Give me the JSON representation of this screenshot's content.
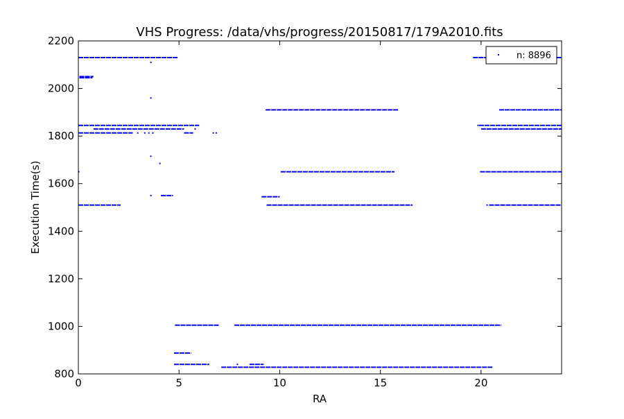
{
  "chart_data": {
    "type": "scatter",
    "title": "VHS Progress: /data/vhs/progress/20150817/179A2010.fits",
    "xlabel": "RA",
    "ylabel": "Execution Time(s)",
    "xlim": [
      0,
      24
    ],
    "ylim": [
      800,
      2200
    ],
    "x_ticks": [
      0,
      5,
      10,
      15,
      20
    ],
    "y_ticks": [
      800,
      1000,
      1200,
      1400,
      1600,
      1800,
      2000,
      2200
    ],
    "legend": {
      "label": "n: 8896",
      "placement": "top-right"
    },
    "grid": false,
    "marker_color": "#0000ff",
    "series": [
      {
        "name": "n: 8896",
        "segments": [
          {
            "y": 2130,
            "x": [
              0.0,
              4.95
            ]
          },
          {
            "y": 2130,
            "x": [
              19.6,
              24.0
            ]
          },
          {
            "y": 2050,
            "x": [
              0.05,
              0.75
            ]
          },
          {
            "y": 2045,
            "x": [
              0.05,
              0.7
            ]
          },
          {
            "y": 1910,
            "x": [
              9.3,
              15.9
            ]
          },
          {
            "y": 1910,
            "x": [
              20.9,
              24.0
            ]
          },
          {
            "y": 1845,
            "x": [
              0.0,
              6.0
            ]
          },
          {
            "y": 1845,
            "x": [
              19.9,
              24.0
            ]
          },
          {
            "y": 1830,
            "x": [
              0.75,
              5.25
            ]
          },
          {
            "y": 1830,
            "x": [
              20.0,
              24.0
            ]
          },
          {
            "y": 1813,
            "x": [
              0.0,
              2.7
            ]
          },
          {
            "y": 1813,
            "x": [
              5.25,
              5.7
            ]
          },
          {
            "y": 1650,
            "x": [
              10.05,
              15.7
            ]
          },
          {
            "y": 1650,
            "x": [
              19.95,
              24.0
            ]
          },
          {
            "y": 1545,
            "x": [
              9.1,
              10.0
            ]
          },
          {
            "y": 1550,
            "x": [
              4.1,
              4.7
            ]
          },
          {
            "y": 1510,
            "x": [
              0.0,
              2.1
            ]
          },
          {
            "y": 1510,
            "x": [
              9.35,
              16.6
            ]
          },
          {
            "y": 1510,
            "x": [
              20.4,
              24.0
            ]
          },
          {
            "y": 1005,
            "x": [
              4.8,
              7.0
            ]
          },
          {
            "y": 1005,
            "x": [
              7.75,
              21.0
            ]
          },
          {
            "y": 888,
            "x": [
              4.75,
              5.6
            ]
          },
          {
            "y": 840,
            "x": [
              4.75,
              6.5
            ]
          },
          {
            "y": 840,
            "x": [
              8.5,
              9.2
            ]
          },
          {
            "y": 828,
            "x": [
              7.1,
              20.6
            ]
          }
        ],
        "points": [
          {
            "x": 3.6,
            "y": 2110
          },
          {
            "x": 3.6,
            "y": 1960
          },
          {
            "x": 3.6,
            "y": 1715
          },
          {
            "x": 4.05,
            "y": 1685
          },
          {
            "x": 3.6,
            "y": 1550
          },
          {
            "x": 3.3,
            "y": 1813
          },
          {
            "x": 3.5,
            "y": 1813
          },
          {
            "x": 3.7,
            "y": 1813
          },
          {
            "x": 2.95,
            "y": 1813
          },
          {
            "x": 6.7,
            "y": 1813
          },
          {
            "x": 6.85,
            "y": 1813
          },
          {
            "x": 5.8,
            "y": 1830
          },
          {
            "x": 0.02,
            "y": 1650
          },
          {
            "x": 7.9,
            "y": 840
          },
          {
            "x": 19.85,
            "y": 1845
          },
          {
            "x": 20.3,
            "y": 1510
          }
        ]
      }
    ]
  }
}
